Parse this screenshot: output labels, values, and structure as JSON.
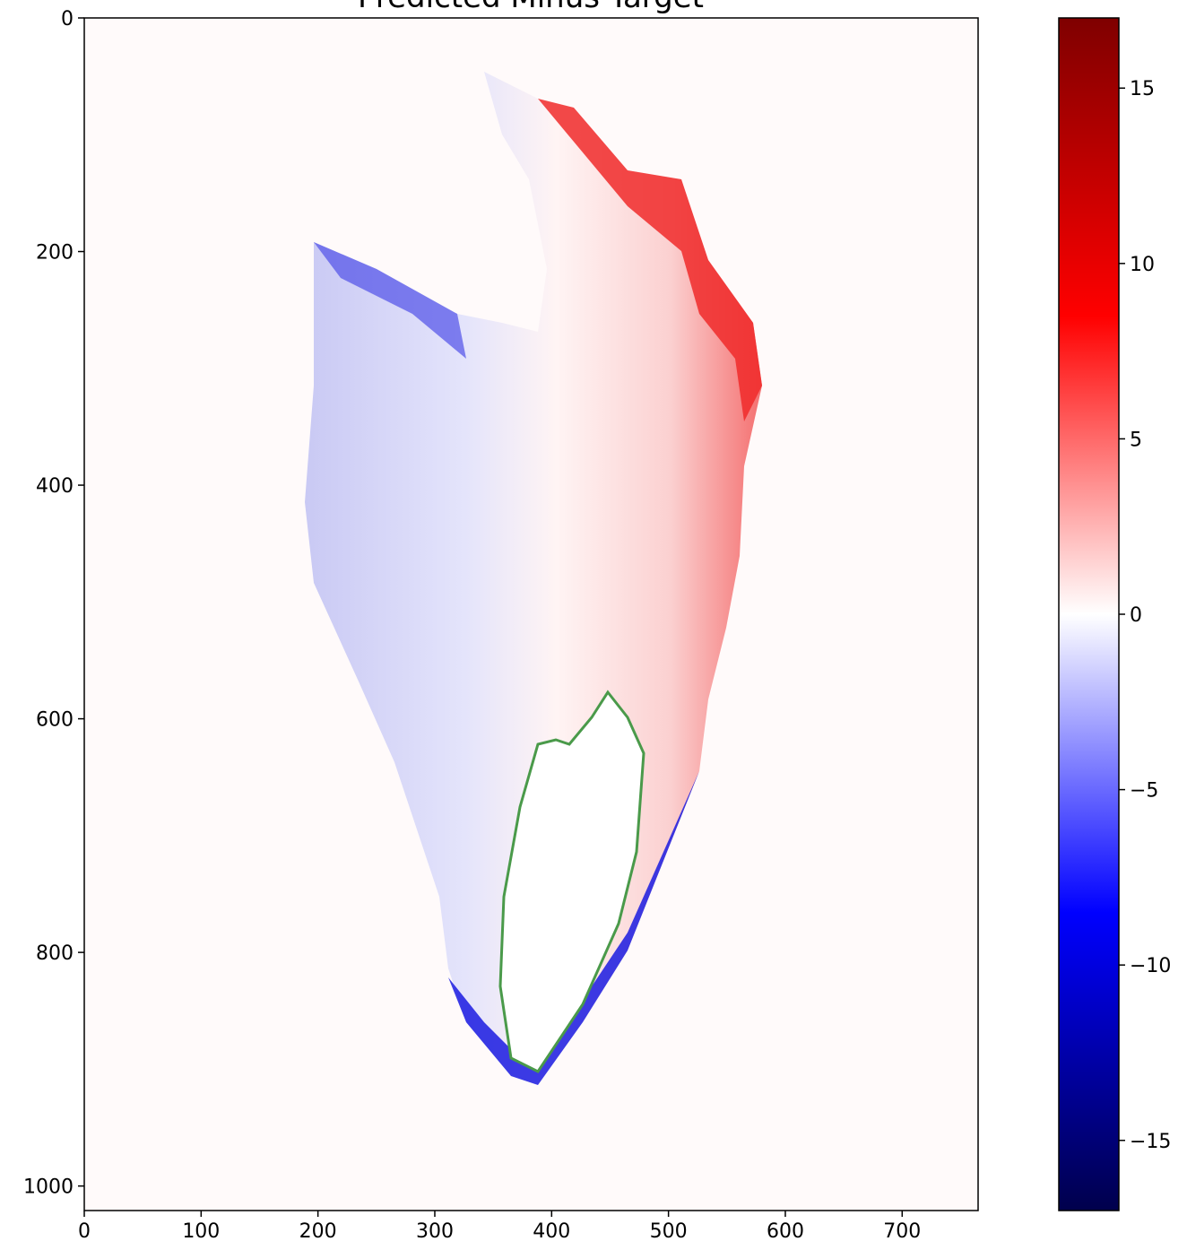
{
  "chart_data": {
    "type": "heatmap",
    "title": "Predicted Minus Target",
    "xlim": [
      0,
      765
    ],
    "xticks": [
      0,
      100,
      200,
      300,
      400,
      500,
      600,
      700
    ],
    "ylim": [
      1021,
      0
    ],
    "yticks": [
      0,
      200,
      400,
      600,
      800,
      1000
    ],
    "clim": [
      -17,
      17
    ],
    "cticks": [
      {
        "value": -15,
        "label": "−15"
      },
      {
        "value": -10,
        "label": "−10"
      },
      {
        "value": -5,
        "label": "−5"
      },
      0,
      5,
      10,
      15
    ],
    "colormap": [
      "#00004c",
      "#0000ff",
      "#ffffff",
      "#ff0000",
      "#7f0000"
    ],
    "contour_color": "#4a9a4a"
  }
}
